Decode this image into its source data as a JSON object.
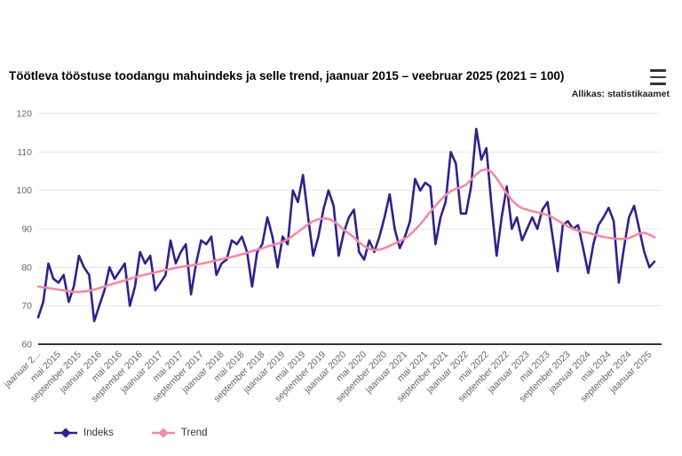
{
  "header": {
    "title": "Töötleva tööstuse toodangu mahuindeks ja selle trend, jaanuar 2015 – veebruar 2025 (2021 = 100)",
    "source": "Allikas: statistikaamet",
    "menu_icon": "hamburger-menu-icon"
  },
  "legend": [
    {
      "label": "Indeks",
      "color": "#32208c"
    },
    {
      "label": "Trend",
      "color": "#f08aa5"
    }
  ],
  "colors": {
    "grid": "#e6e6e6",
    "axis_line": "#333333",
    "tick_label": "#666666",
    "indeks_line": "#32208c",
    "trend_line": "#f08aa5"
  },
  "chart_data": {
    "type": "line",
    "title": "Töötleva tööstuse toodangu mahuindeks ja selle trend, jaanuar 2015 – veebruar 2025 (2021 = 100)",
    "source": "Allikas: statistikaamet",
    "x_start": "jaanuar 2015",
    "x_end": "veebruar 2025",
    "months_per_tick": 4,
    "x_tick_labels": [
      "jaanuar 2...",
      "mai 2015",
      "september 2015",
      "jaanuar 2016",
      "mai 2016",
      "september 2016",
      "jaanuar 2017",
      "mai 2017",
      "september 2017",
      "jaanuar 2018",
      "mai 2018",
      "september 2018",
      "jaanuar 2019",
      "mai 2019",
      "september 2019",
      "jaanuar 2020",
      "mai 2020",
      "september 2020",
      "jaanuar 2021",
      "mai 2021",
      "september 2021",
      "jaanuar 2022",
      "mai 2022",
      "september 2022",
      "jaanuar 2023",
      "mai 2023",
      "september 2023",
      "jaanuar 2024",
      "mai 2024",
      "september 2024",
      "jaanuar 2025"
    ],
    "ylim": [
      60,
      120
    ],
    "y_ticks": [
      60,
      70,
      80,
      90,
      100,
      110,
      120
    ],
    "grid": "horizontal",
    "legend_position": "bottom-left",
    "series": [
      {
        "name": "Indeks",
        "color": "#32208c",
        "values": [
          67,
          71,
          81,
          77,
          76,
          78,
          71,
          75,
          83,
          80,
          78,
          66,
          70,
          74,
          80,
          77,
          79,
          81,
          70,
          75,
          84,
          81,
          83,
          74,
          76,
          78,
          87,
          81,
          84,
          86,
          73,
          81,
          87,
          86,
          88,
          78,
          81,
          82,
          87,
          86,
          88,
          84,
          75,
          84,
          86,
          93,
          88,
          80,
          88,
          86,
          100,
          97,
          104,
          93,
          83,
          88,
          95,
          100,
          96,
          83,
          89,
          93,
          95,
          84,
          82,
          87,
          84,
          88,
          93,
          99,
          90,
          85,
          88,
          92,
          103,
          100,
          102,
          101,
          86,
          93,
          97,
          110,
          107,
          94,
          94,
          101,
          116,
          108,
          111,
          96,
          83,
          93,
          101,
          90,
          93,
          87,
          90,
          93,
          90,
          95,
          97,
          88,
          79,
          91,
          92,
          90,
          91,
          85,
          78.5,
          86,
          91,
          93,
          95.5,
          92,
          76,
          85,
          93,
          96,
          90,
          84,
          80,
          81.5
        ]
      },
      {
        "name": "Trend",
        "color": "#f08aa5",
        "values": [
          75.0,
          74.8,
          74.6,
          74.4,
          74.2,
          74.0,
          73.8,
          73.6,
          73.6,
          73.7,
          73.9,
          74.2,
          74.6,
          75.0,
          75.4,
          75.8,
          76.2,
          76.6,
          77.0,
          77.4,
          77.8,
          78.1,
          78.4,
          78.7,
          79.0,
          79.3,
          79.6,
          79.9,
          80.1,
          80.3,
          80.5,
          80.7,
          80.9,
          81.2,
          81.5,
          81.8,
          82.1,
          82.4,
          82.7,
          83.0,
          83.4,
          83.8,
          84.2,
          84.6,
          85.0,
          85.4,
          85.8,
          86.2,
          86.6,
          87.3,
          88.2,
          89.2,
          90.2,
          91.2,
          92.0,
          92.5,
          92.7,
          92.6,
          92.0,
          91.0,
          89.8,
          88.8,
          87.8,
          86.5,
          85.5,
          84.8,
          84.5,
          84.6,
          85.0,
          85.6,
          86.2,
          86.8,
          87.5,
          88.5,
          89.8,
          91.2,
          92.8,
          94.5,
          96.0,
          97.5,
          98.8,
          99.8,
          100.4,
          100.8,
          101.5,
          102.8,
          104.2,
          105.2,
          105.5,
          104.8,
          103.2,
          101.2,
          99.2,
          97.5,
          96.2,
          95.4,
          95.0,
          94.6,
          94.3,
          94.0,
          93.6,
          93.0,
          92.2,
          91.4,
          90.6,
          90.0,
          89.5,
          89.2,
          89.0,
          88.6,
          88.2,
          87.9,
          87.7,
          87.5,
          87.4,
          87.4,
          87.6,
          88.2,
          88.8,
          89.0,
          88.5,
          87.8
        ]
      }
    ]
  }
}
